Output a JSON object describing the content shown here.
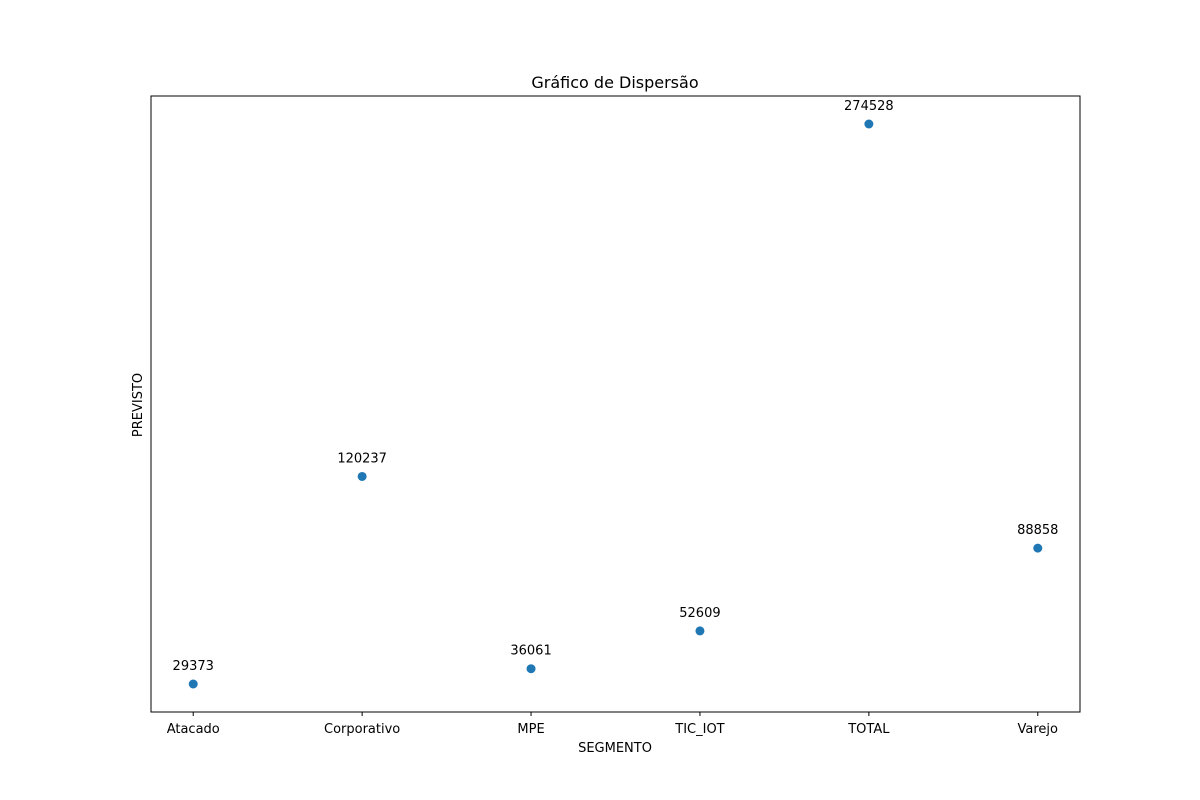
{
  "chart_data": {
    "type": "scatter",
    "title": "Gráfico de Dispersão",
    "xlabel": "SEGMENTO",
    "ylabel": "PREVISTO",
    "categories": [
      "Atacado",
      "Corporativo",
      "MPE",
      "TIC_IOT",
      "TOTAL",
      "Varejo"
    ],
    "values": [
      29373,
      120237,
      36061,
      52609,
      274528,
      88858
    ],
    "data_labels": [
      "29373",
      "120237",
      "36061",
      "52609",
      "274528",
      "88858"
    ],
    "y_ticks_shown": false,
    "grid": false,
    "legend": "none",
    "marker_color": "#1f77b4"
  }
}
